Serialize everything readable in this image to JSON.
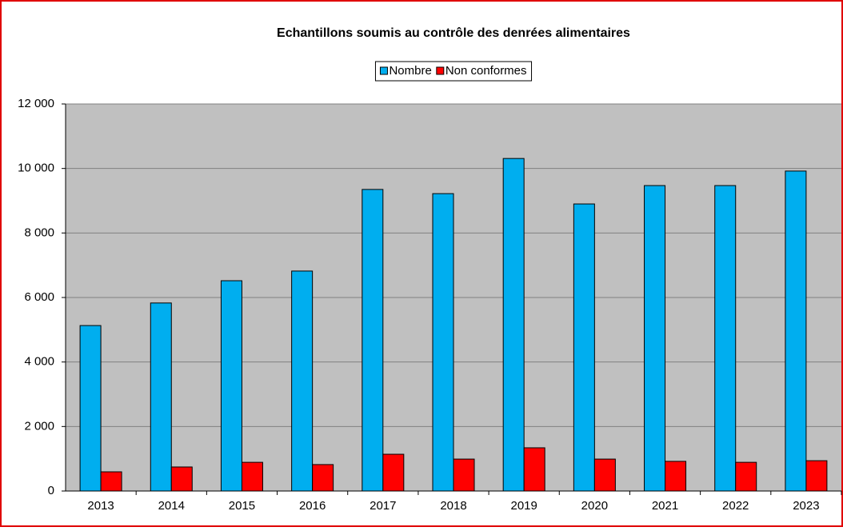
{
  "chart_data": {
    "type": "bar",
    "title": "Echantillons soumis au contrôle des denrées alimentaires",
    "categories": [
      "2013",
      "2014",
      "2015",
      "2016",
      "2017",
      "2018",
      "2019",
      "2020",
      "2021",
      "2022",
      "2023"
    ],
    "series": [
      {
        "name": "Nombre",
        "color": "#00aeef",
        "values": [
          5130,
          5830,
          6520,
          6820,
          9350,
          9220,
          10310,
          8900,
          9470,
          9470,
          9920
        ]
      },
      {
        "name": "Non conformes",
        "color": "#ff0000",
        "values": [
          595,
          745,
          890,
          820,
          1140,
          990,
          1340,
          990,
          920,
          890,
          940
        ]
      }
    ],
    "ylim": [
      0,
      12000
    ],
    "yticks": [
      0,
      {
        "value": 2000,
        "label": "2 000"
      },
      {
        "value": 4000,
        "label": "4 000"
      },
      {
        "value": 6000,
        "label": "6 000"
      },
      {
        "value": 8000,
        "label": "8 000"
      },
      {
        "value": 10000,
        "label": "10 000"
      },
      {
        "value": 12000,
        "label": "12 000"
      }
    ],
    "grid": true,
    "legend": "top"
  }
}
